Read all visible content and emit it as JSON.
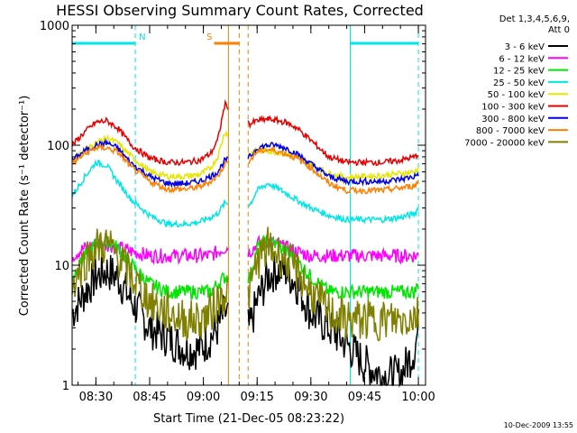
{
  "chart_data": {
    "type": "line",
    "title": "HESSI Observing Summary Count Rates, Corrected",
    "xlabel": "Start Time (21-Dec-05 08:23:22)",
    "ylabel": "Corrected Count Rate (s⁻¹ detector⁻¹)",
    "yscale": "log",
    "xlim": [
      "08:23:22",
      "10:02:00"
    ],
    "ylim": [
      1,
      1000
    ],
    "x_ticks": [
      "08:30",
      "08:45",
      "09:00",
      "09:15",
      "09:30",
      "09:45",
      "10:00"
    ],
    "y_ticks": [
      "1",
      "10",
      "100",
      "1000"
    ],
    "legend_header": [
      "Det 1,3,4,5,6,9,",
      "Att 0"
    ],
    "legend_placement": "outside-right",
    "timestamp": "10-Dec-2009 13:55",
    "markers": [
      {
        "label": "N",
        "color": "#00e6e6",
        "bar": [
          "08:23:22",
          "08:41:00"
        ],
        "dashed_line": "08:41:00"
      },
      {
        "label": "",
        "color": "#00e6e6",
        "bar": [
          "09:41:00",
          "10:00:00"
        ],
        "dashed_line": "09:41:00",
        "dashed_line_end": "10:00:00"
      },
      {
        "label": "S",
        "color": "#ff7f00",
        "bar": [
          "09:03:00",
          "09:10:00"
        ],
        "dashed_line": "09:10:00",
        "dashed_line_end": "09:12:30"
      }
    ],
    "gap": [
      "09:07:00",
      "09:12:30"
    ],
    "time_samples": [
      "08:23:22",
      "08:27",
      "08:30",
      "08:33",
      "08:36",
      "08:40",
      "08:45",
      "08:50",
      "08:55",
      "08:59",
      "09:02",
      "09:04",
      "09:06",
      "09:13",
      "09:15",
      "09:18",
      "09:20",
      "09:23",
      "09:26",
      "09:30",
      "09:35",
      "09:40",
      "09:45",
      "09:50",
      "09:55",
      "09:59",
      "10:00"
    ],
    "series": [
      {
        "name": "3 - 6 keV",
        "color": "#000000",
        "values": [
          4,
          6,
          8,
          9,
          8,
          5,
          3,
          2.5,
          2,
          2,
          2.5,
          3,
          4,
          3,
          5,
          8,
          9,
          9,
          7,
          4,
          3,
          2.2,
          1.5,
          1.2,
          1.2,
          2,
          3
        ]
      },
      {
        "name": "6 - 12 keV",
        "color": "#ff00ff",
        "values": [
          12,
          14,
          15,
          15,
          14,
          13,
          12,
          12,
          12,
          12,
          12,
          13,
          14,
          13,
          15,
          16,
          15,
          14,
          13,
          12,
          12,
          12,
          12,
          12,
          12,
          12,
          12
        ]
      },
      {
        "name": "12 - 25 keV",
        "color": "#00e600",
        "values": [
          8,
          12,
          15,
          16,
          14,
          10,
          7,
          6,
          6,
          6,
          6,
          7,
          8,
          8,
          14,
          16,
          15,
          13,
          11,
          8,
          6,
          6,
          6,
          6,
          6,
          6,
          7
        ]
      },
      {
        "name": "25 - 50 keV",
        "color": "#00e6e6",
        "values": [
          38,
          55,
          72,
          68,
          50,
          35,
          26,
          22,
          22,
          23,
          25,
          27,
          33,
          32,
          42,
          48,
          45,
          40,
          35,
          30,
          26,
          24,
          24,
          24,
          25,
          27,
          30
        ]
      },
      {
        "name": "50 - 100 keV",
        "color": "#e6e600",
        "values": [
          75,
          90,
          105,
          115,
          105,
          80,
          60,
          55,
          55,
          57,
          65,
          80,
          130,
          85,
          90,
          90,
          88,
          85,
          80,
          70,
          58,
          54,
          55,
          56,
          58,
          60,
          65
        ]
      },
      {
        "name": "100 - 300 keV",
        "color": "#e60000",
        "values": [
          100,
          130,
          155,
          160,
          140,
          100,
          78,
          72,
          72,
          75,
          85,
          110,
          220,
          150,
          160,
          165,
          162,
          155,
          140,
          110,
          80,
          72,
          72,
          72,
          75,
          80,
          85
        ]
      },
      {
        "name": "300 - 800 keV",
        "color": "#0000e6",
        "values": [
          75,
          90,
          100,
          105,
          95,
          70,
          55,
          48,
          48,
          50,
          55,
          60,
          75,
          80,
          95,
          100,
          100,
          95,
          85,
          70,
          55,
          50,
          50,
          50,
          52,
          55,
          58
        ]
      },
      {
        "name": "800 - 7000 keV",
        "color": "#ff7f00",
        "values": [
          70,
          85,
          95,
          95,
          88,
          65,
          50,
          43,
          43,
          45,
          50,
          55,
          70,
          75,
          88,
          92,
          90,
          85,
          78,
          65,
          48,
          42,
          42,
          42,
          44,
          46,
          50
        ]
      },
      {
        "name": "7000 - 20000 keV",
        "color": "#808000",
        "values": [
          7,
          11,
          14,
          15,
          12,
          8,
          5,
          4,
          3.5,
          3.5,
          4,
          5,
          6,
          6,
          11,
          14,
          13,
          11,
          9,
          6,
          4,
          3.5,
          3.5,
          3.5,
          3.5,
          3.8,
          4
        ]
      }
    ]
  }
}
